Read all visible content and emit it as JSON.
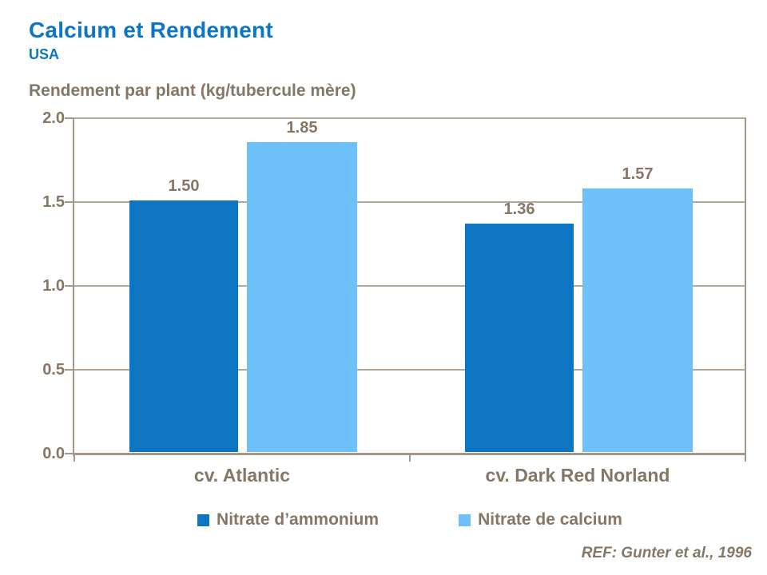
{
  "header": {
    "title": "Calcium et Rendement",
    "subtitle": "USA"
  },
  "footer": {
    "ref": "REF: Gunter et al., 1996"
  },
  "colors": {
    "accent_blue": "#0C76C5",
    "text_brown": "#867666",
    "axis_line": "#A2978A",
    "gridline": "#B3A89C",
    "series1": "#0D75C1",
    "series2": "#6EC0F8"
  },
  "chart_data": {
    "type": "bar",
    "ylabel": "Rendement par plant (kg/tubercule mère)",
    "xlabel": "",
    "categories": [
      "cv. Atlantic",
      "cv. Dark Red Norland"
    ],
    "series": [
      {
        "name": "Nitrate d’ammonium",
        "color": "#0D75C1",
        "values": [
          1.5,
          1.36
        ]
      },
      {
        "name": "Nitrate de calcium",
        "color": "#6EC0F8",
        "values": [
          1.85,
          1.57
        ]
      }
    ],
    "ylim": [
      0.0,
      2.0
    ],
    "yticks": [
      "0.0",
      "0.5",
      "1.0",
      "1.5",
      "2.0"
    ],
    "grid": true,
    "legend_position": "bottom",
    "annotation": "REF: Gunter et al., 1996"
  }
}
